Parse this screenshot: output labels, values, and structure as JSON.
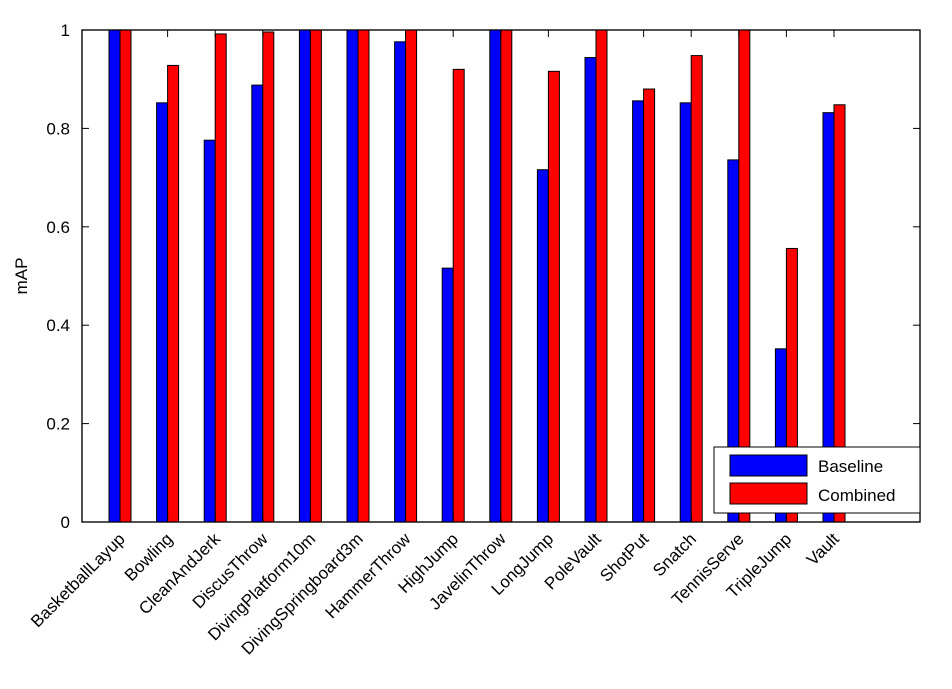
{
  "chart_data": {
    "type": "bar",
    "title": "",
    "xlabel": "",
    "ylabel": "mAP",
    "ylim": [
      0,
      1
    ],
    "yticks": [
      0,
      0.2,
      0.4,
      0.6,
      0.8,
      1
    ],
    "ytick_labels": [
      "0",
      "0.2",
      "0.4",
      "0.6",
      "0.8",
      "1"
    ],
    "categories": [
      "BasketballLayup",
      "Bowling",
      "CleanAndJerk",
      "DiscusThrow",
      "DivingPlatform10m",
      "DivingSpringboard3m",
      "HammerThrow",
      "HighJump",
      "JavelinThrow",
      "LongJump",
      "PoleVault",
      "ShotPut",
      "Snatch",
      "TennisServe",
      "TripleJump",
      "Vault"
    ],
    "series": [
      {
        "name": "Baseline",
        "color": "#0000ff",
        "values": [
          1.0,
          0.852,
          0.776,
          0.888,
          1.0,
          1.0,
          0.976,
          0.516,
          1.0,
          0.716,
          0.944,
          0.856,
          0.852,
          0.736,
          0.352,
          0.832
        ]
      },
      {
        "name": "Combined",
        "color": "#ff0000",
        "values": [
          1.0,
          0.928,
          0.992,
          0.996,
          1.0,
          1.0,
          1.0,
          0.92,
          1.0,
          0.916,
          1.0,
          0.88,
          0.948,
          1.0,
          0.556,
          0.848
        ]
      }
    ],
    "legend": {
      "position": "bottom-right",
      "entries": [
        "Baseline",
        "Combined"
      ]
    },
    "grid": false
  }
}
